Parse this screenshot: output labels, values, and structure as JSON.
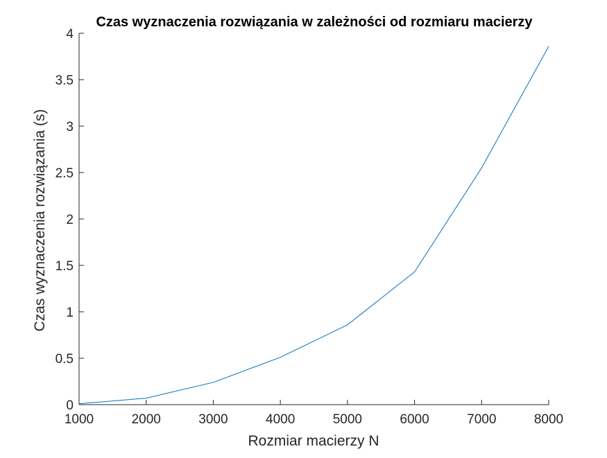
{
  "chart_data": {
    "type": "line",
    "title": "Czas wyznaczenia rozwiązania w zależności od rozmiaru macierzy",
    "xlabel": "Rozmiar macierzy N",
    "ylabel": "Czas wyznaczenia rozwiązania (s)",
    "xlim": [
      1000,
      8000
    ],
    "ylim": [
      0,
      4
    ],
    "xticks": [
      1000,
      2000,
      3000,
      4000,
      5000,
      6000,
      7000,
      8000
    ],
    "xtick_labels": [
      "1000",
      "2000",
      "3000",
      "4000",
      "5000",
      "6000",
      "7000",
      "8000"
    ],
    "yticks": [
      0,
      0.5,
      1,
      1.5,
      2,
      2.5,
      3,
      3.5,
      4
    ],
    "ytick_labels": [
      "0",
      "0.5",
      "1",
      "1.5",
      "2",
      "2.5",
      "3",
      "3.5",
      "4"
    ],
    "grid": false,
    "series": [
      {
        "color": "#0072bd",
        "x": [
          1000,
          2000,
          3000,
          4000,
          5000,
          6000,
          7000,
          8000
        ],
        "y": [
          0.01,
          0.07,
          0.24,
          0.51,
          0.86,
          1.43,
          2.55,
          3.86
        ]
      }
    ]
  }
}
